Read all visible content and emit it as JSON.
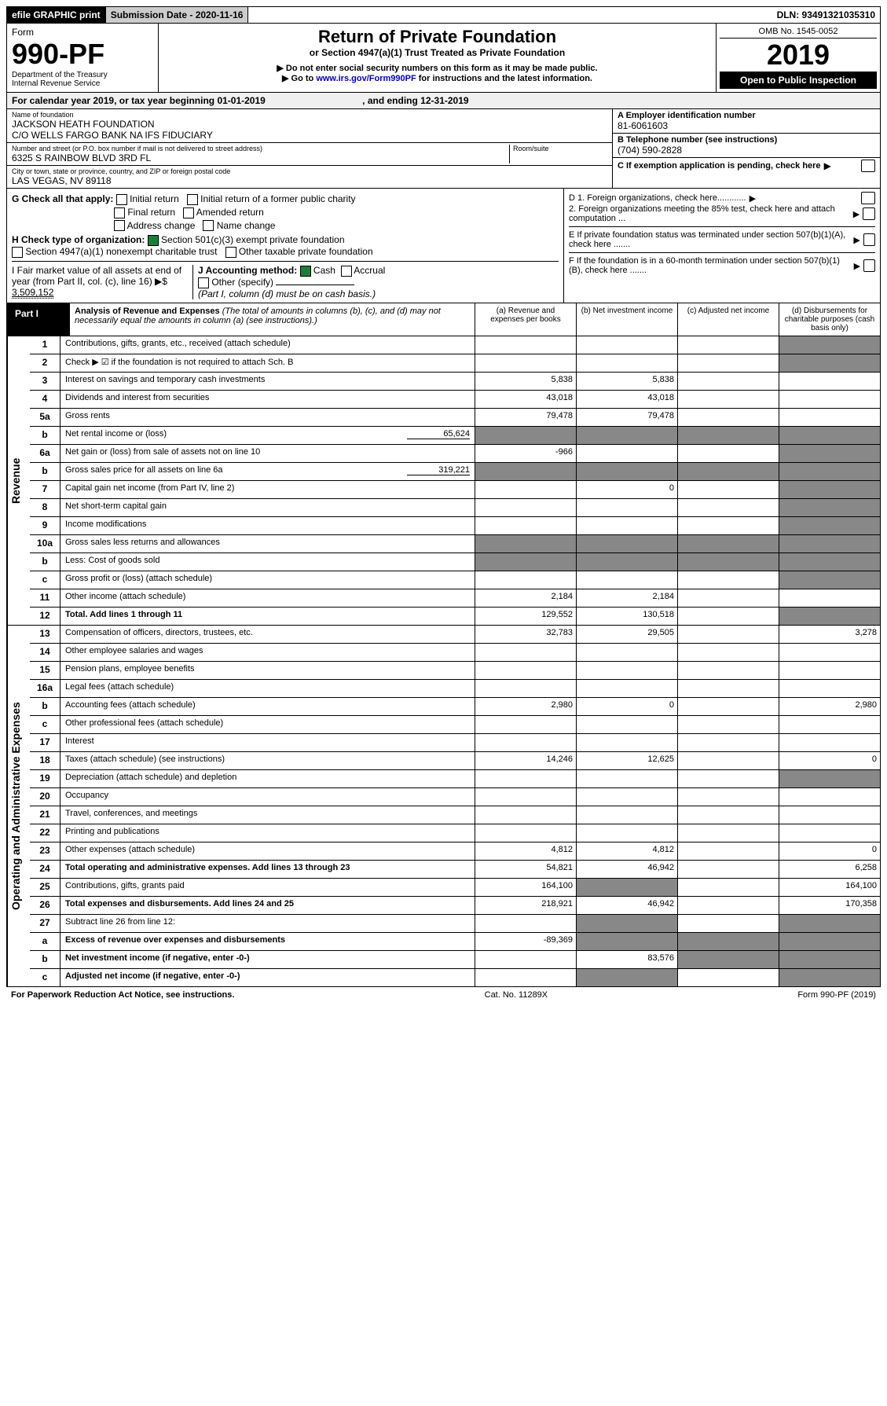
{
  "topbar": {
    "efile": "efile GRAPHIC print",
    "submission": "Submission Date - 2020-11-16",
    "dln": "DLN: 93491321035310"
  },
  "header": {
    "form_label": "Form",
    "form_no": "990-PF",
    "dept": "Department of the Treasury",
    "irs": "Internal Revenue Service",
    "title": "Return of Private Foundation",
    "subtitle": "or Section 4947(a)(1) Trust Treated as Private Foundation",
    "note1": "▶ Do not enter social security numbers on this form as it may be made public.",
    "note2_pre": "▶ Go to ",
    "note2_link": "www.irs.gov/Form990PF",
    "note2_post": " for instructions and the latest information.",
    "omb": "OMB No. 1545-0052",
    "year": "2019",
    "open": "Open to Public Inspection"
  },
  "calendar": {
    "text_a": "For calendar year 2019, or tax year beginning 01-01-2019",
    "text_b": ", and ending 12-31-2019"
  },
  "entity": {
    "name_label": "Name of foundation",
    "name1": "JACKSON HEATH FOUNDATION",
    "name2": "C/O WELLS FARGO BANK NA IFS FIDUCIARY",
    "addr_label": "Number and street (or P.O. box number if mail is not delivered to street address)",
    "addr": "6325 S RAINBOW BLVD 3RD FL",
    "room_label": "Room/suite",
    "city_label": "City or town, state or province, country, and ZIP or foreign postal code",
    "city": "LAS VEGAS, NV  89118",
    "ein_label": "A Employer identification number",
    "ein": "81-6061603",
    "phone_label": "B Telephone number (see instructions)",
    "phone": "(704) 590-2828",
    "c_label": "C If exemption application is pending, check here"
  },
  "checks": {
    "g_label": "G Check all that apply:",
    "g_opts": [
      "Initial return",
      "Initial return of a former public charity",
      "Final return",
      "Amended return",
      "Address change",
      "Name change"
    ],
    "h_label": "H Check type of organization:",
    "h_501c3": "Section 501(c)(3) exempt private foundation",
    "h_4947": "Section 4947(a)(1) nonexempt charitable trust",
    "h_other": "Other taxable private foundation",
    "i_label": "I Fair market value of all assets at end of year (from Part II, col. (c), line 16) ▶$ ",
    "i_val": "3,509,152",
    "j_label": "J Accounting method:",
    "j_cash": "Cash",
    "j_accrual": "Accrual",
    "j_other": "Other (specify)",
    "j_note": "(Part I, column (d) must be on cash basis.)",
    "d1": "D 1. Foreign organizations, check here............",
    "d2": "2. Foreign organizations meeting the 85% test, check here and attach computation ...",
    "e": "E  If private foundation status was terminated under section 507(b)(1)(A), check here .......",
    "f": "F  If the foundation is in a 60-month termination under section 507(b)(1)(B), check here .......",
    "arrow": "▶"
  },
  "part1": {
    "label": "Part I",
    "title": "Analysis of Revenue and Expenses",
    "title_note": "(The total of amounts in columns (b), (c), and (d) may not necessarily equal the amounts in column (a) (see instructions).)",
    "col_a": "(a)   Revenue and expenses per books",
    "col_b": "(b)  Net investment income",
    "col_c": "(c)  Adjusted net income",
    "col_d": "(d)  Disbursements for charitable purposes (cash basis only)"
  },
  "sections": {
    "revenue": "Revenue",
    "expenses": "Operating and Administrative Expenses"
  },
  "rows": {
    "r1": {
      "n": "1",
      "d": "Contributions, gifts, grants, etc., received (attach schedule)"
    },
    "r2": {
      "n": "2",
      "d": "Check ▶ ☑ if the foundation is not required to attach Sch. B"
    },
    "r3": {
      "n": "3",
      "d": "Interest on savings and temporary cash investments",
      "a": "5,838",
      "b": "5,838"
    },
    "r4": {
      "n": "4",
      "d": "Dividends and interest from securities",
      "a": "43,018",
      "b": "43,018"
    },
    "r5a": {
      "n": "5a",
      "d": "Gross rents",
      "a": "79,478",
      "b": "79,478"
    },
    "r5b": {
      "n": "b",
      "d": "Net rental income or (loss)",
      "inline": "65,624"
    },
    "r6a": {
      "n": "6a",
      "d": "Net gain or (loss) from sale of assets not on line 10",
      "a": "-966"
    },
    "r6b": {
      "n": "b",
      "d": "Gross sales price for all assets on line 6a",
      "inline": "319,221"
    },
    "r7": {
      "n": "7",
      "d": "Capital gain net income (from Part IV, line 2)",
      "b": "0"
    },
    "r8": {
      "n": "8",
      "d": "Net short-term capital gain"
    },
    "r9": {
      "n": "9",
      "d": "Income modifications"
    },
    "r10a": {
      "n": "10a",
      "d": "Gross sales less returns and allowances"
    },
    "r10b": {
      "n": "b",
      "d": "Less: Cost of goods sold"
    },
    "r10c": {
      "n": "c",
      "d": "Gross profit or (loss) (attach schedule)"
    },
    "r11": {
      "n": "11",
      "d": "Other income (attach schedule)",
      "a": "2,184",
      "b": "2,184"
    },
    "r12": {
      "n": "12",
      "d": "Total. Add lines 1 through 11",
      "a": "129,552",
      "b": "130,518",
      "bold": true
    },
    "r13": {
      "n": "13",
      "d": "Compensation of officers, directors, trustees, etc.",
      "a": "32,783",
      "b": "29,505",
      "dd": "3,278"
    },
    "r14": {
      "n": "14",
      "d": "Other employee salaries and wages"
    },
    "r15": {
      "n": "15",
      "d": "Pension plans, employee benefits"
    },
    "r16a": {
      "n": "16a",
      "d": "Legal fees (attach schedule)"
    },
    "r16b": {
      "n": "b",
      "d": "Accounting fees (attach schedule)",
      "a": "2,980",
      "b": "0",
      "dd": "2,980"
    },
    "r16c": {
      "n": "c",
      "d": "Other professional fees (attach schedule)"
    },
    "r17": {
      "n": "17",
      "d": "Interest"
    },
    "r18": {
      "n": "18",
      "d": "Taxes (attach schedule) (see instructions)",
      "a": "14,246",
      "b": "12,625",
      "dd": "0"
    },
    "r19": {
      "n": "19",
      "d": "Depreciation (attach schedule) and depletion"
    },
    "r20": {
      "n": "20",
      "d": "Occupancy"
    },
    "r21": {
      "n": "21",
      "d": "Travel, conferences, and meetings"
    },
    "r22": {
      "n": "22",
      "d": "Printing and publications"
    },
    "r23": {
      "n": "23",
      "d": "Other expenses (attach schedule)",
      "a": "4,812",
      "b": "4,812",
      "dd": "0"
    },
    "r24": {
      "n": "24",
      "d": "Total operating and administrative expenses. Add lines 13 through 23",
      "a": "54,821",
      "b": "46,942",
      "dd": "6,258",
      "bold": true
    },
    "r25": {
      "n": "25",
      "d": "Contributions, gifts, grants paid",
      "a": "164,100",
      "dd": "164,100"
    },
    "r26": {
      "n": "26",
      "d": "Total expenses and disbursements. Add lines 24 and 25",
      "a": "218,921",
      "b": "46,942",
      "dd": "170,358",
      "bold": true
    },
    "r27": {
      "n": "27",
      "d": "Subtract line 26 from line 12:"
    },
    "r27a": {
      "n": "a",
      "d": "Excess of revenue over expenses and disbursements",
      "a": "-89,369",
      "bold": true
    },
    "r27b": {
      "n": "b",
      "d": "Net investment income (if negative, enter -0-)",
      "b": "83,576",
      "bold": true
    },
    "r27c": {
      "n": "c",
      "d": "Adjusted net income (if negative, enter -0-)",
      "bold": true
    }
  },
  "footer": {
    "left": "For Paperwork Reduction Act Notice, see instructions.",
    "center": "Cat. No. 11289X",
    "right": "Form 990-PF (2019)"
  }
}
